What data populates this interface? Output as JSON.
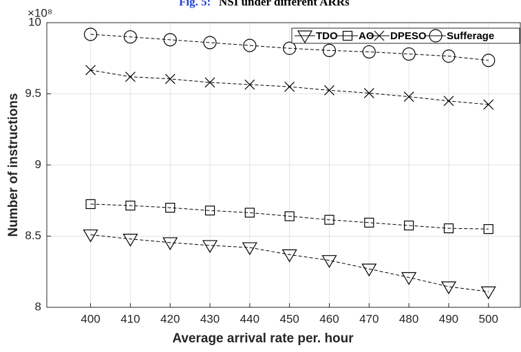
{
  "chart_data": {
    "type": "line",
    "title_label": "Fig. 5:",
    "title": "NSI under different ARRs",
    "xlabel": "Average arrival rate per. hour",
    "ylabel": "Number of instructions",
    "y_multiplier": "×10⁸",
    "x": [
      400,
      410,
      420,
      430,
      440,
      450,
      460,
      470,
      480,
      490,
      500
    ],
    "series": [
      {
        "name": "TDO",
        "marker": "triangle-down",
        "color": "#000000",
        "values": [
          8.51,
          8.48,
          8.455,
          8.435,
          8.42,
          8.37,
          8.33,
          8.27,
          8.21,
          8.145,
          8.11
        ]
      },
      {
        "name": "AO",
        "marker": "square",
        "color": "#000000",
        "values": [
          8.725,
          8.715,
          8.7,
          8.68,
          8.665,
          8.64,
          8.615,
          8.595,
          8.575,
          8.555,
          8.55
        ]
      },
      {
        "name": "DPESO",
        "marker": "x",
        "color": "#000000",
        "values": [
          9.667,
          9.62,
          9.605,
          9.58,
          9.565,
          9.55,
          9.525,
          9.505,
          9.48,
          9.45,
          9.425
        ]
      },
      {
        "name": "Sufferage",
        "marker": "circle",
        "color": "#000000",
        "values": [
          9.918,
          9.9,
          9.88,
          9.86,
          9.84,
          9.82,
          9.805,
          9.795,
          9.78,
          9.765,
          9.735
        ]
      }
    ],
    "xlim": [
      389,
      508
    ],
    "ylim": [
      8,
      10
    ],
    "xticks": [
      400,
      410,
      420,
      430,
      440,
      450,
      460,
      470,
      480,
      490,
      500
    ],
    "yticks": [
      8,
      8.5,
      9,
      9.5,
      10
    ],
    "grid": true,
    "legend": "top-right"
  }
}
